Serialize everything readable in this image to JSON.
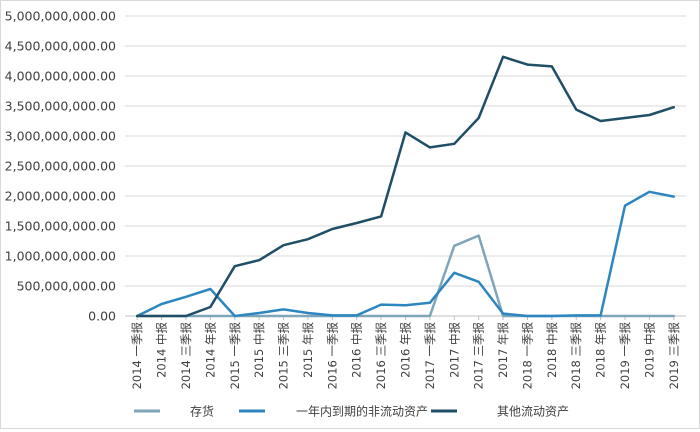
{
  "chart_data": {
    "type": "line",
    "title": "",
    "xlabel": "",
    "ylabel": "",
    "ylim": [
      0,
      5000000000
    ],
    "yticks": [
      0,
      500000000,
      1000000000,
      1500000000,
      2000000000,
      2500000000,
      3000000000,
      3500000000,
      4000000000,
      4500000000,
      5000000000
    ],
    "ytick_labels": [
      "0.00",
      "500,000,000.00",
      "1,000,000,000.00",
      "1,500,000,000.00",
      "2,000,000,000.00",
      "2,500,000,000.00",
      "3,000,000,000.00",
      "3,500,000,000.00",
      "4,000,000,000.00",
      "4,500,000,000.00",
      "5,000,000,000.00"
    ],
    "grid": "horizontal",
    "legend_position": "bottom",
    "categories": [
      "2014 一季报",
      "2014 中报",
      "2014 三季报",
      "2014 年报",
      "2015 一季报",
      "2015 中报",
      "2015 三季报",
      "2015 年报",
      "2016 一季报",
      "2016 中报",
      "2016 三季报",
      "2016 年报",
      "2017 一季报",
      "2017 中报",
      "2017 三季报",
      "2017 年报",
      "2018 一季报",
      "2018 中报",
      "2018 三季报",
      "2018 年报",
      "2019 一季报",
      "2019 中报",
      "2019 三季报"
    ],
    "series": [
      {
        "name": "存货",
        "color": "#7fa6b8",
        "values": [
          0,
          0,
          0,
          0,
          0,
          0,
          0,
          0,
          0,
          0,
          0,
          0,
          0,
          1170000000,
          1340000000,
          0,
          0,
          0,
          0,
          0,
          0,
          0,
          0
        ]
      },
      {
        "name": "一年内到期的非流动资产",
        "color": "#2e86c1",
        "values": [
          0,
          200000000,
          320000000,
          450000000,
          0,
          50000000,
          110000000,
          50000000,
          10000000,
          10000000,
          190000000,
          180000000,
          220000000,
          720000000,
          570000000,
          40000000,
          0,
          0,
          10000000,
          10000000,
          1840000000,
          2070000000,
          1990000000
        ]
      },
      {
        "name": "其他流动资产",
        "color": "#1f4e66",
        "values": [
          0,
          0,
          0,
          150000000,
          830000000,
          930000000,
          1180000000,
          1280000000,
          1450000000,
          1550000000,
          1660000000,
          3060000000,
          2810000000,
          2870000000,
          3300000000,
          4320000000,
          4190000000,
          4160000000,
          3440000000,
          3250000000,
          3300000000,
          3350000000,
          3480000000
        ]
      }
    ]
  }
}
